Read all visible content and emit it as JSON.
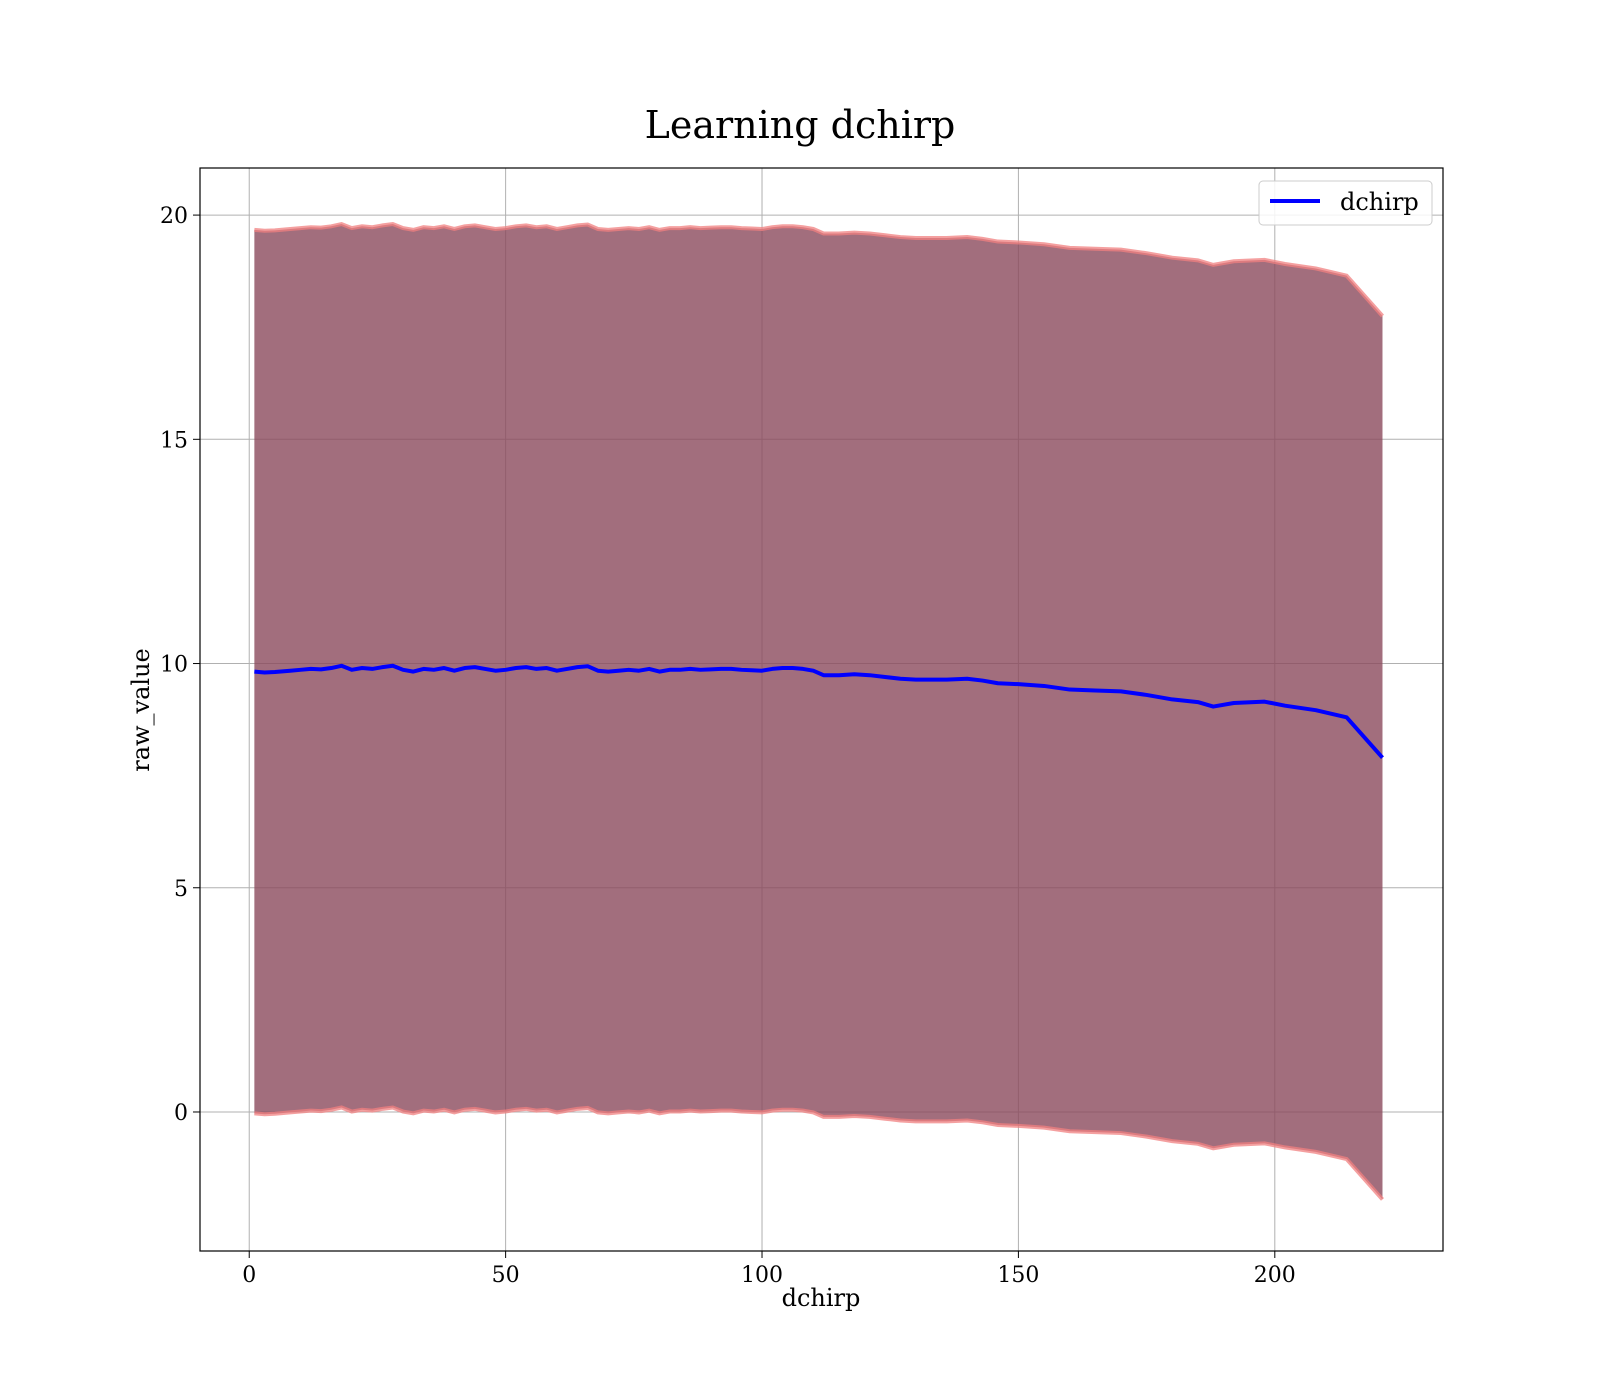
{
  "chart_data": {
    "type": "line",
    "title": "Learning dchirp",
    "xlabel": "dchirp",
    "ylabel": "raw_value",
    "xlim": [
      -9.6,
      232.8
    ],
    "ylim": [
      -3.1,
      21.05
    ],
    "xticks": [
      0,
      50,
      100,
      150,
      200
    ],
    "yticks": [
      0,
      5,
      10,
      15,
      20
    ],
    "xtick_labels": [
      "0",
      "50",
      "100",
      "150",
      "200"
    ],
    "ytick_labels": [
      "0",
      "5",
      "10",
      "15",
      "20"
    ],
    "grid": true,
    "legend": {
      "placement": "top-right",
      "entries": [
        "dchirp"
      ]
    },
    "colors": {
      "mean_line": "#0000ff",
      "band_fill": "#8b4a5c",
      "band_edge": "#f08080"
    },
    "band_halfwidth": 9.85,
    "series": [
      {
        "name": "dchirp",
        "x": [
          1,
          3,
          5,
          8,
          10,
          12,
          14,
          16,
          18,
          20,
          22,
          24,
          26,
          28,
          30,
          32,
          34,
          36,
          38,
          40,
          42,
          44,
          46,
          48,
          50,
          52,
          54,
          56,
          58,
          60,
          62,
          64,
          66,
          68,
          70,
          72,
          74,
          76,
          78,
          80,
          82,
          84,
          86,
          88,
          90,
          92,
          94,
          96,
          98,
          100,
          102,
          104,
          106,
          108,
          110,
          112,
          115,
          118,
          121,
          124,
          127,
          130,
          133,
          136,
          140,
          143,
          146,
          150,
          155,
          160,
          165,
          170,
          175,
          180,
          185,
          188,
          192,
          198,
          202,
          208,
          214,
          221
        ],
        "y": [
          9.82,
          9.8,
          9.81,
          9.84,
          9.86,
          9.88,
          9.87,
          9.9,
          9.95,
          9.86,
          9.9,
          9.88,
          9.92,
          9.95,
          9.86,
          9.82,
          9.88,
          9.86,
          9.9,
          9.84,
          9.9,
          9.92,
          9.88,
          9.84,
          9.86,
          9.9,
          9.92,
          9.88,
          9.9,
          9.84,
          9.88,
          9.92,
          9.94,
          9.84,
          9.82,
          9.84,
          9.86,
          9.84,
          9.88,
          9.82,
          9.86,
          9.86,
          9.88,
          9.86,
          9.87,
          9.88,
          9.88,
          9.86,
          9.85,
          9.84,
          9.88,
          9.9,
          9.9,
          9.88,
          9.84,
          9.74,
          9.74,
          9.76,
          9.74,
          9.7,
          9.66,
          9.64,
          9.64,
          9.64,
          9.66,
          9.62,
          9.56,
          9.54,
          9.5,
          9.42,
          9.4,
          9.38,
          9.3,
          9.2,
          9.14,
          9.04,
          9.12,
          9.15,
          9.06,
          8.96,
          8.8,
          7.9
        ]
      }
    ]
  }
}
